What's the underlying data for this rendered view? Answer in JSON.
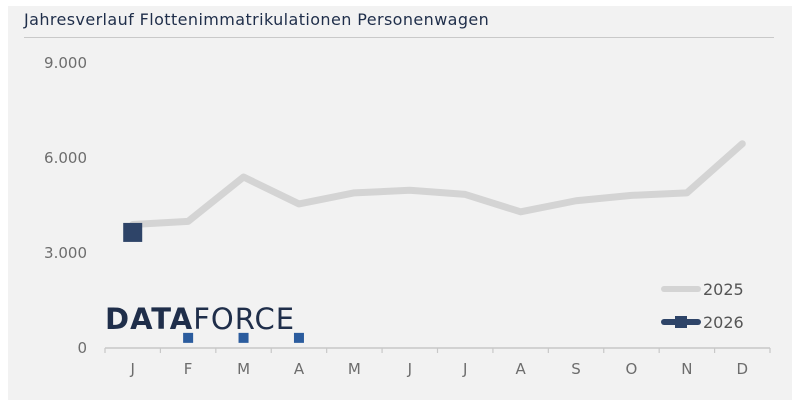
{
  "title": "Jahresverlauf Flottenimmatrikulationen Personenwagen",
  "logo": {
    "part1": "DATA",
    "part2": "FORCE"
  },
  "colors": {
    "series_2025": "#d4d4d4",
    "series_2026": "#2e4468",
    "series_2026_small": "#2b5c9e",
    "axis": "#c8c8c8",
    "tick_text": "#6d6d6d",
    "logo_text": "#1f2e4a"
  },
  "chart_data": {
    "type": "line",
    "title": "Jahresverlauf Flottenimmatrikulationen Personenwagen",
    "xlabel": "",
    "ylabel": "",
    "categories": [
      "J",
      "F",
      "M",
      "A",
      "M",
      "J",
      "J",
      "A",
      "S",
      "O",
      "N",
      "D"
    ],
    "y_ticks": [
      "0",
      "3.000",
      "6.000",
      "9.000"
    ],
    "y_tick_values": [
      0,
      3000,
      6000,
      9000
    ],
    "ylim": [
      0,
      9000
    ],
    "grid": false,
    "legend_position": "right",
    "series": [
      {
        "name": "2025",
        "style": "line",
        "values": [
          3900,
          4000,
          5400,
          4550,
          4900,
          4980,
          4850,
          4300,
          4650,
          4820,
          4900,
          6450
        ]
      },
      {
        "name": "2026",
        "style": "line-marker",
        "values": [
          3650,
          320,
          320,
          320,
          null,
          null,
          null,
          null,
          null,
          null,
          null,
          null
        ]
      }
    ]
  }
}
